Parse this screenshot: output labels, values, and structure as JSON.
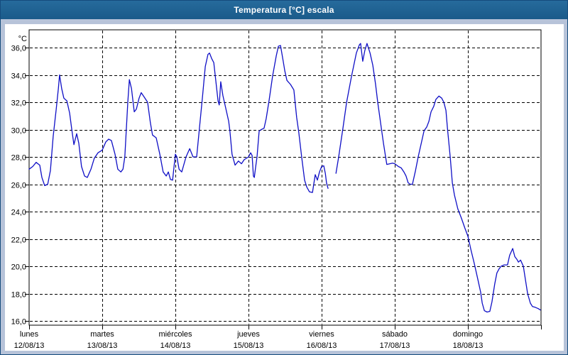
{
  "window": {
    "title": "Temperatura [°C] escala"
  },
  "colors": {
    "titlebar_bg": "#1f6494",
    "frame_bg": "#b7c3d9",
    "plot_bg": "#ffffff",
    "grid": "#000000",
    "line": "#0f0fc6",
    "text": "#000000"
  },
  "chart_data": {
    "type": "line",
    "title": "Temperatura [°C] escala",
    "ylabel": "°C",
    "xlabel": "",
    "grid": "dashed-black",
    "legend": "none",
    "y_axis": {
      "unit_label": "°C",
      "min": 16.0,
      "max": 36.0,
      "tick_step": 2.0,
      "tick_labels": [
        "36,0",
        "34,0",
        "32,0",
        "30,0",
        "28,0",
        "26,0",
        "24,0",
        "22,0",
        "20,0",
        "18,0",
        "16,0"
      ]
    },
    "x_axis": {
      "unit": "hours from Monday 00:00",
      "total_hours": 168,
      "days": [
        {
          "name": "lunes",
          "date": "12/08/13"
        },
        {
          "name": "martes",
          "date": "13/08/13"
        },
        {
          "name": "miércoles",
          "date": "14/08/13"
        },
        {
          "name": "jueves",
          "date": "15/08/13"
        },
        {
          "name": "viernes",
          "date": "16/08/13"
        },
        {
          "name": "sábado",
          "date": "17/08/13"
        },
        {
          "name": "domingo",
          "date": "18/08/13"
        }
      ]
    },
    "series": [
      {
        "name": "Temperatura",
        "color": "#0f0fc6",
        "daily_peaks": [
          34.0,
          33.65,
          35.6,
          36.15,
          36.3,
          32.45,
          21.3
        ],
        "segments": [
          [
            [
              0,
              27.1
            ],
            [
              1.2,
              27.3
            ],
            [
              2.3,
              27.6
            ],
            [
              3.5,
              27.4
            ],
            [
              4.2,
              26.5
            ],
            [
              5.1,
              25.9
            ],
            [
              6.1,
              26.0
            ],
            [
              7.0,
              27.0
            ],
            [
              7.9,
              29.5
            ],
            [
              8.9,
              31.5
            ],
            [
              9.6,
              33.0
            ],
            [
              10.0,
              34.0
            ],
            [
              10.7,
              33.0
            ],
            [
              11.4,
              32.3
            ],
            [
              12.4,
              32.1
            ],
            [
              13.3,
              31.2
            ],
            [
              14.0,
              30.0
            ],
            [
              14.7,
              28.9
            ],
            [
              15.6,
              29.7
            ],
            [
              16.3,
              29.0
            ],
            [
              17.2,
              27.3
            ],
            [
              18.2,
              26.6
            ],
            [
              19.1,
              26.5
            ],
            [
              20.3,
              27.1
            ],
            [
              21.4,
              27.9
            ],
            [
              22.6,
              28.3
            ],
            [
              24.0,
              28.5
            ],
            [
              25.2,
              29.1
            ],
            [
              26.1,
              29.3
            ],
            [
              27.0,
              29.2
            ],
            [
              28.2,
              28.2
            ],
            [
              29.1,
              27.1
            ],
            [
              30.1,
              26.9
            ],
            [
              30.8,
              27.1
            ],
            [
              31.4,
              28.0
            ],
            [
              31.9,
              30.0
            ],
            [
              32.4,
              32.0
            ],
            [
              32.9,
              33.65
            ],
            [
              33.6,
              33.0
            ],
            [
              34.5,
              31.3
            ],
            [
              35.2,
              31.5
            ],
            [
              36.1,
              32.3
            ],
            [
              36.8,
              32.7
            ],
            [
              37.7,
              32.4
            ],
            [
              38.9,
              32.0
            ],
            [
              39.8,
              30.5
            ],
            [
              40.5,
              29.6
            ],
            [
              41.7,
              29.4
            ],
            [
              42.9,
              28.2
            ],
            [
              44.0,
              26.9
            ],
            [
              45.0,
              26.6
            ],
            [
              45.7,
              26.9
            ],
            [
              46.4,
              26.35
            ],
            [
              47.1,
              26.3
            ],
            [
              48.0,
              28.2
            ],
            [
              48.5,
              28.0
            ],
            [
              49.2,
              27.1
            ],
            [
              50.1,
              26.9
            ],
            [
              51.5,
              28.0
            ],
            [
              52.7,
              28.6
            ],
            [
              53.8,
              28.0
            ],
            [
              55.0,
              28.0
            ],
            [
              55.9,
              30.1
            ],
            [
              56.9,
              32.4
            ],
            [
              57.8,
              34.6
            ],
            [
              58.7,
              35.5
            ],
            [
              59.2,
              35.6
            ],
            [
              59.9,
              35.2
            ],
            [
              60.6,
              34.9
            ],
            [
              61.3,
              33.5
            ],
            [
              62.0,
              32.1
            ],
            [
              62.4,
              31.8
            ],
            [
              62.9,
              33.5
            ],
            [
              63.6,
              32.5
            ],
            [
              64.8,
              31.3
            ],
            [
              65.5,
              30.6
            ],
            [
              65.9,
              29.9
            ],
            [
              66.6,
              28.2
            ],
            [
              67.6,
              27.4
            ],
            [
              68.7,
              27.7
            ],
            [
              69.7,
              27.5
            ],
            [
              70.6,
              27.8
            ],
            [
              72.0,
              28.0
            ],
            [
              72.7,
              28.3
            ],
            [
              73.2,
              28.1
            ],
            [
              73.6,
              26.6
            ],
            [
              73.9,
              26.5
            ],
            [
              74.3,
              27.2
            ],
            [
              74.8,
              28.0
            ],
            [
              75.5,
              29.9
            ],
            [
              76.2,
              30.0
            ],
            [
              77.1,
              30.1
            ],
            [
              77.8,
              30.8
            ],
            [
              78.8,
              32.2
            ],
            [
              79.9,
              33.9
            ],
            [
              81.1,
              35.4
            ],
            [
              81.8,
              36.1
            ],
            [
              82.5,
              36.15
            ],
            [
              83.4,
              35.0
            ],
            [
              83.9,
              34.3
            ],
            [
              84.6,
              33.6
            ],
            [
              85.8,
              33.3
            ],
            [
              86.9,
              32.9
            ],
            [
              87.8,
              30.9
            ],
            [
              88.5,
              29.8
            ],
            [
              89.5,
              27.9
            ],
            [
              90.4,
              26.3
            ],
            [
              91.1,
              25.8
            ],
            [
              92.0,
              25.45
            ],
            [
              93.0,
              25.4
            ],
            [
              93.9,
              26.7
            ],
            [
              94.6,
              26.3
            ],
            [
              95.3,
              26.9
            ],
            [
              96.0,
              27.3
            ],
            [
              96.7,
              27.35
            ],
            [
              97.2,
              26.8
            ],
            [
              97.6,
              26.1
            ],
            [
              98.1,
              25.7
            ]
          ],
          [
            [
              100.7,
              26.8
            ],
            [
              101.6,
              28.0
            ],
            [
              103.0,
              30.1
            ],
            [
              104.2,
              32.0
            ],
            [
              105.8,
              33.9
            ],
            [
              107.4,
              35.6
            ],
            [
              108.4,
              36.2
            ],
            [
              108.8,
              36.3
            ],
            [
              109.5,
              35.0
            ],
            [
              110.2,
              35.8
            ],
            [
              110.9,
              36.3
            ],
            [
              111.9,
              35.6
            ],
            [
              112.8,
              34.7
            ],
            [
              113.7,
              33.3
            ],
            [
              114.4,
              32.0
            ],
            [
              115.6,
              30.1
            ],
            [
              116.3,
              29.0
            ],
            [
              117.0,
              28.0
            ],
            [
              117.4,
              27.45
            ],
            [
              118.4,
              27.5
            ],
            [
              119.3,
              27.55
            ],
            [
              120.0,
              27.5
            ],
            [
              121.2,
              27.3
            ],
            [
              122.1,
              27.2
            ],
            [
              123.0,
              26.9
            ],
            [
              123.7,
              26.6
            ],
            [
              124.4,
              26.1
            ],
            [
              125.1,
              26.0
            ],
            [
              125.8,
              26.0
            ],
            [
              126.8,
              27.0
            ],
            [
              127.7,
              28.0
            ],
            [
              128.9,
              29.2
            ],
            [
              129.6,
              29.9
            ],
            [
              130.5,
              30.2
            ],
            [
              131.2,
              30.6
            ],
            [
              131.9,
              31.3
            ],
            [
              132.8,
              31.7
            ],
            [
              133.5,
              32.2
            ],
            [
              134.5,
              32.45
            ],
            [
              135.4,
              32.3
            ],
            [
              136.1,
              32.0
            ],
            [
              136.8,
              31.4
            ],
            [
              137.3,
              30.1
            ],
            [
              138.2,
              28.0
            ],
            [
              138.9,
              26.1
            ],
            [
              139.6,
              25.2
            ],
            [
              140.7,
              24.2
            ],
            [
              141.9,
              23.5
            ],
            [
              143.0,
              22.8
            ],
            [
              144.0,
              22.2
            ],
            [
              145.0,
              21.2
            ],
            [
              146.1,
              20.2
            ],
            [
              147.3,
              19.0
            ],
            [
              148.2,
              18.1
            ],
            [
              148.7,
              17.3
            ],
            [
              149.4,
              16.75
            ],
            [
              150.3,
              16.65
            ],
            [
              151.2,
              16.7
            ],
            [
              151.9,
              17.4
            ],
            [
              152.8,
              18.7
            ],
            [
              153.5,
              19.5
            ],
            [
              154.2,
              19.8
            ],
            [
              154.9,
              20.0
            ],
            [
              155.9,
              20.1
            ],
            [
              157.0,
              20.1
            ],
            [
              157.7,
              20.8
            ],
            [
              158.7,
              21.3
            ],
            [
              159.4,
              20.7
            ],
            [
              160.1,
              20.5
            ],
            [
              160.6,
              20.3
            ],
            [
              161.3,
              20.45
            ],
            [
              162.2,
              20.0
            ],
            [
              162.9,
              19.0
            ],
            [
              163.6,
              18.0
            ],
            [
              164.5,
              17.3
            ],
            [
              165.2,
              17.05
            ],
            [
              166.1,
              17.0
            ],
            [
              167.1,
              16.9
            ],
            [
              167.8,
              16.8
            ]
          ]
        ]
      }
    ]
  }
}
